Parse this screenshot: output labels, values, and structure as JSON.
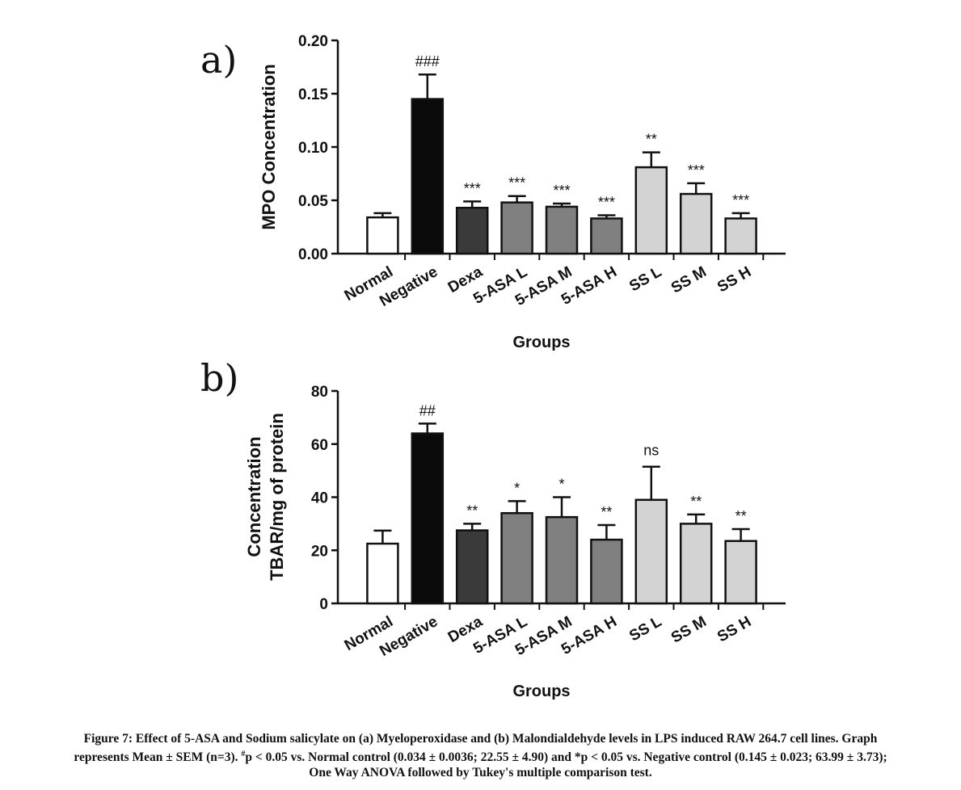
{
  "chart_data": [
    {
      "type": "bar",
      "panel_label": "a)",
      "categories": [
        "Normal",
        "Negative",
        "Dexa",
        "5-ASA L",
        "5-ASA M",
        "5-ASA H",
        "SS L",
        "SS M",
        "SS H"
      ],
      "values": [
        0.034,
        0.145,
        0.043,
        0.048,
        0.044,
        0.033,
        0.081,
        0.056,
        0.033
      ],
      "errors": [
        0.004,
        0.023,
        0.006,
        0.006,
        0.003,
        0.003,
        0.014,
        0.01,
        0.005
      ],
      "annotations": [
        "",
        "###",
        "***",
        "***",
        "***",
        "***",
        "**",
        "***",
        "***"
      ],
      "bar_colors": [
        "#ffffff",
        "#0a0a0a",
        "#3a3a3a",
        "#808080",
        "#808080",
        "#808080",
        "#d3d3d3",
        "#d3d3d3",
        "#d3d3d3"
      ],
      "ylabel": "MPO Concentration",
      "xlabel": "Groups",
      "ylim": [
        0,
        0.2
      ],
      "yticks": [
        "0.00",
        "0.05",
        "0.10",
        "0.15",
        "0.20"
      ],
      "grid": false
    },
    {
      "type": "bar",
      "panel_label": "b)",
      "categories": [
        "Normal",
        "Negative",
        "Dexa",
        "5-ASA L",
        "5-ASA M",
        "5-ASA H",
        "SS L",
        "SS M",
        "SS H"
      ],
      "values": [
        22.5,
        64.0,
        27.5,
        34.0,
        32.5,
        24.0,
        39.0,
        30.0,
        23.5
      ],
      "errors": [
        4.9,
        3.7,
        2.5,
        4.5,
        7.5,
        5.5,
        12.5,
        3.5,
        4.5
      ],
      "annotations": [
        "",
        "##",
        "**",
        "*",
        "*",
        "**",
        "ns",
        "**",
        "**"
      ],
      "bar_colors": [
        "#ffffff",
        "#0a0a0a",
        "#3a3a3a",
        "#808080",
        "#808080",
        "#808080",
        "#d3d3d3",
        "#d3d3d3",
        "#d3d3d3"
      ],
      "ylabel": [
        "Concentration",
        "TBAR/mg of protein"
      ],
      "xlabel": "Groups",
      "ylim": [
        0,
        80
      ],
      "yticks": [
        "0",
        "20",
        "40",
        "60",
        "80"
      ],
      "grid": false
    }
  ],
  "caption": {
    "line1": "Figure 7: Effect of 5-ASA and Sodium salicylate on (a) Myeloperoxidase and (b) Malondialdehyde levels in LPS induced RAW 264.7 cell lines. Graph",
    "line2_a": "represents Mean ± SEM (n=3). ",
    "line2_sup": "#",
    "line2_b": "p < 0.05 vs. Normal control (0.034 ± 0.0036; 22.55 ± 4.90) and *p < 0.05 vs. Negative control (0.145 ± 0.023; 63.99 ± 3.73);",
    "line3": "One Way ANOVA followed by Tukey's multiple comparison test."
  }
}
